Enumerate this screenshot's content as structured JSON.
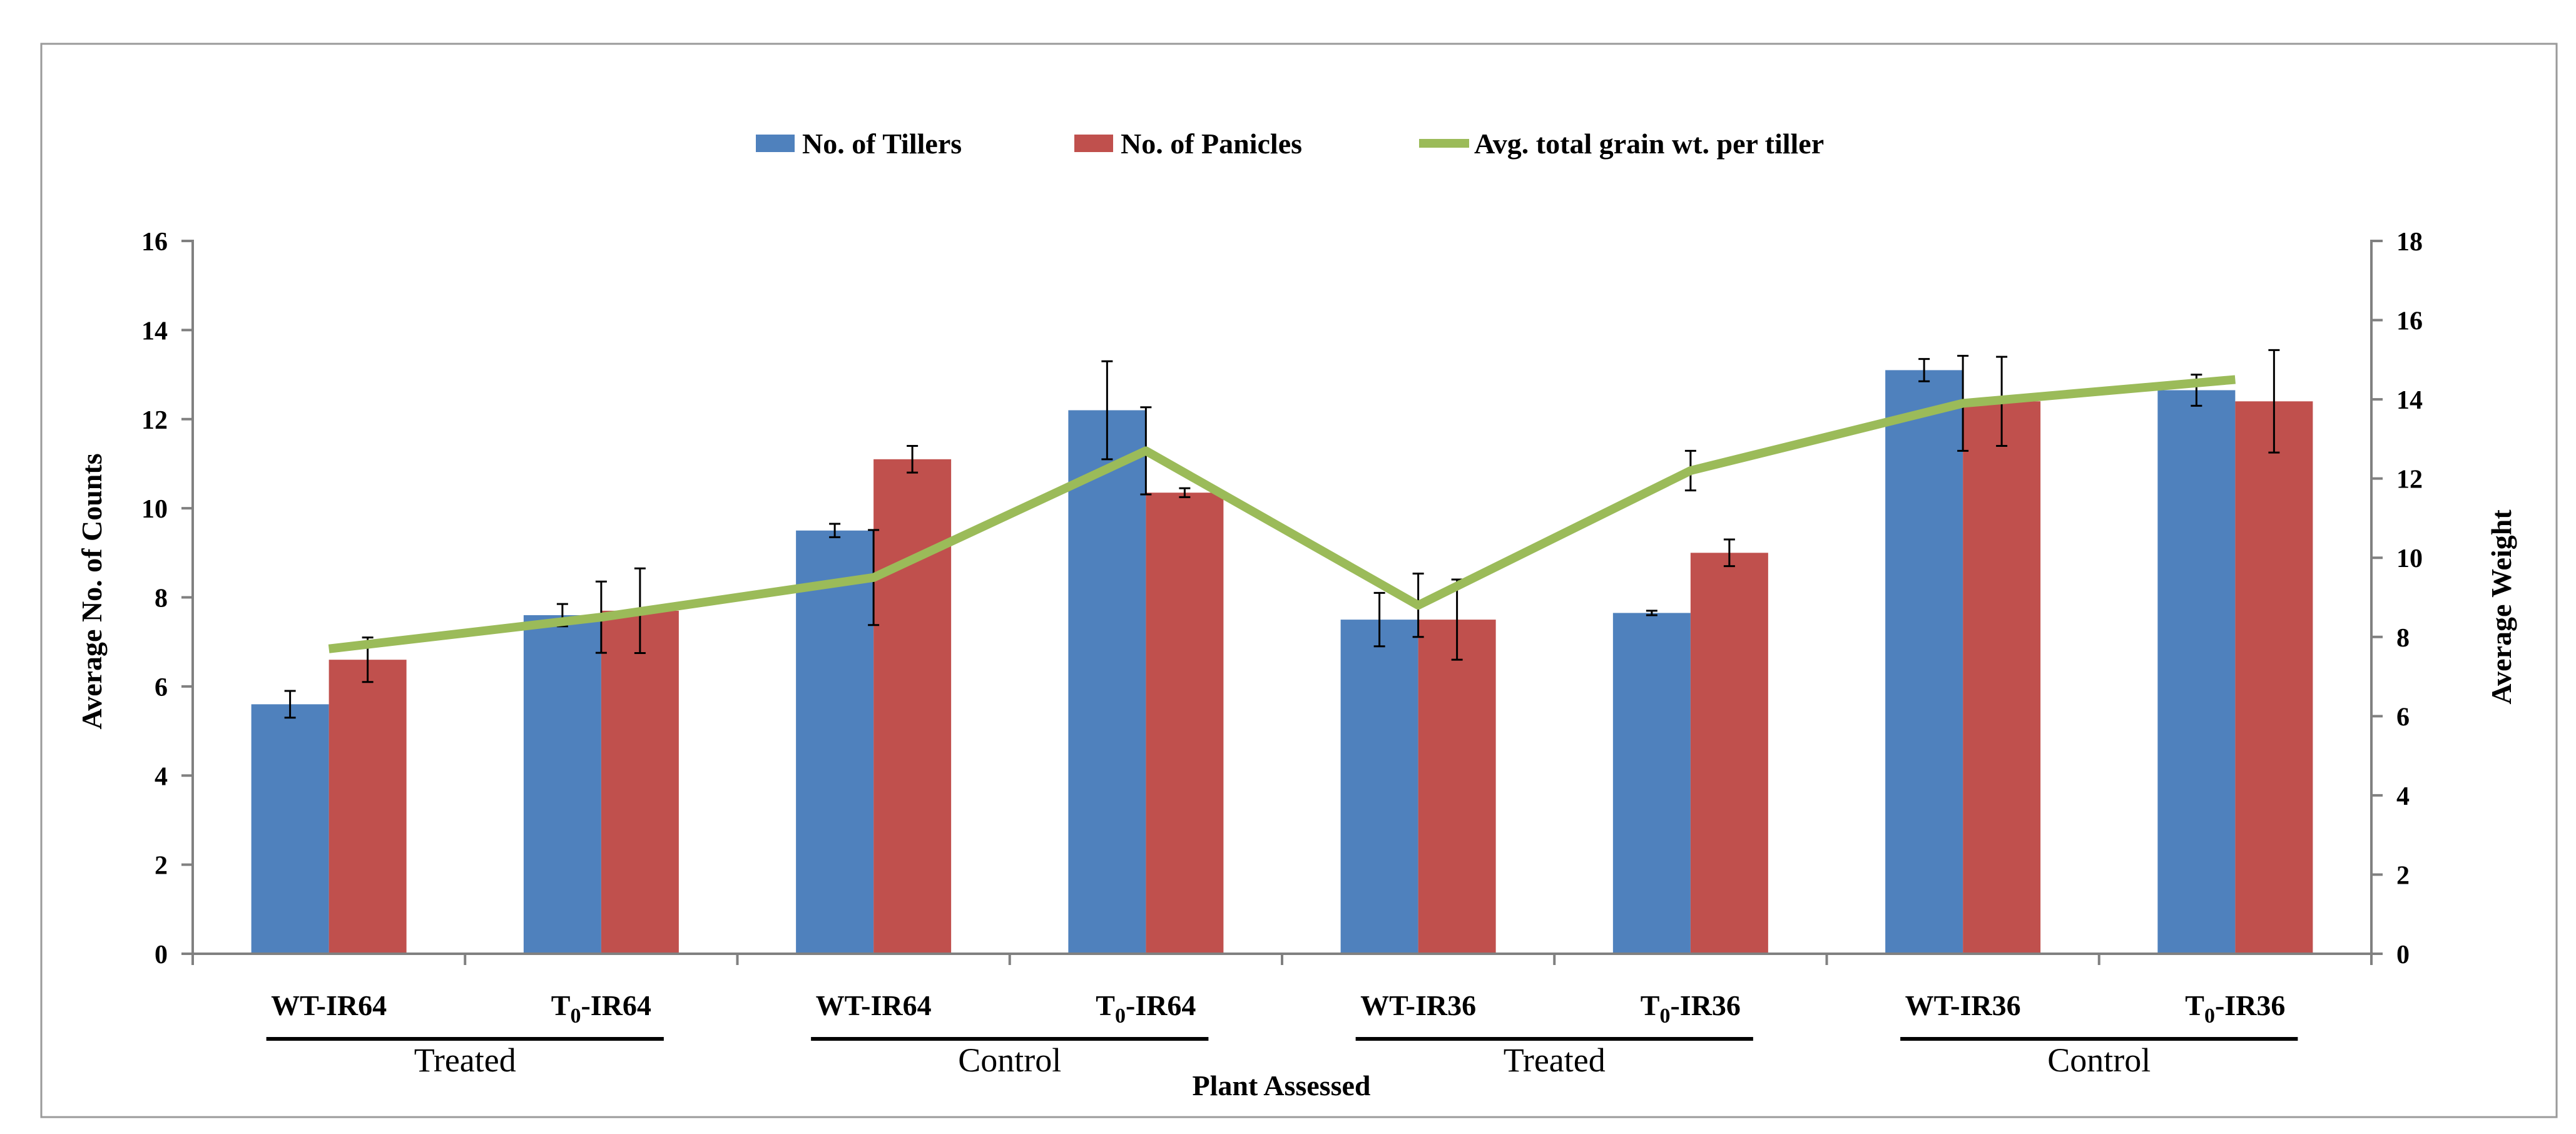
{
  "chart_data": {
    "type": "bar",
    "xlabel": "Plant Assessed",
    "ylabel": "Average No. of Counts",
    "y2label": "Average Weight",
    "ylim": [
      0,
      16
    ],
    "y2lim": [
      0,
      18
    ],
    "yticks": [
      "0",
      "2",
      "4",
      "6",
      "8",
      "10",
      "12",
      "14",
      "16"
    ],
    "y2ticks": [
      "0",
      "2",
      "4",
      "6",
      "8",
      "10",
      "12",
      "14",
      "16",
      "18"
    ],
    "categories": [
      {
        "prefix": "WT-",
        "sub": "",
        "suffix": "IR64"
      },
      {
        "prefix": "T",
        "sub": "0",
        "suffix": "-IR64"
      },
      {
        "prefix": "WT-",
        "sub": "",
        "suffix": "IR64"
      },
      {
        "prefix": "T",
        "sub": "0",
        "suffix": "-IR64"
      },
      {
        "prefix": "WT-",
        "sub": "",
        "suffix": "IR36"
      },
      {
        "prefix": "T",
        "sub": "0",
        "suffix": "-IR36"
      },
      {
        "prefix": "WT-",
        "sub": "",
        "suffix": "IR36"
      },
      {
        "prefix": "T",
        "sub": "0",
        "suffix": "-IR36"
      }
    ],
    "groups": [
      {
        "label": "Treated",
        "start": 0,
        "end": 1
      },
      {
        "label": "Control",
        "start": 2,
        "end": 3
      },
      {
        "label": "Treated",
        "start": 4,
        "end": 5
      },
      {
        "label": "Control",
        "start": 6,
        "end": 7
      }
    ],
    "series": [
      {
        "name": "No. of Tillers",
        "kind": "bar",
        "axis": "left",
        "color": "#4f81bd",
        "values": [
          5.6,
          7.6,
          9.5,
          12.2,
          7.5,
          7.65,
          13.1,
          12.65
        ],
        "errors": [
          0.3,
          0.25,
          0.15,
          1.1,
          0.6,
          0.05,
          0.25,
          0.35
        ]
      },
      {
        "name": "No. of Panicles",
        "kind": "bar",
        "axis": "left",
        "color": "#c0504d",
        "values": [
          6.6,
          7.7,
          11.1,
          10.35,
          7.5,
          9.0,
          12.4,
          12.4
        ],
        "errors": [
          0.5,
          0.95,
          0.3,
          0.1,
          0.9,
          0.3,
          1.0,
          1.15
        ]
      },
      {
        "name": "Avg. total grain wt. per tiller",
        "kind": "line",
        "axis": "right",
        "color": "#9bbb59",
        "values": [
          7.7,
          8.5,
          9.5,
          12.7,
          8.8,
          12.2,
          13.9,
          14.5
        ],
        "errors": [
          0.0,
          0.9,
          1.2,
          1.1,
          0.8,
          0.5,
          1.2,
          0.0
        ]
      }
    ]
  }
}
